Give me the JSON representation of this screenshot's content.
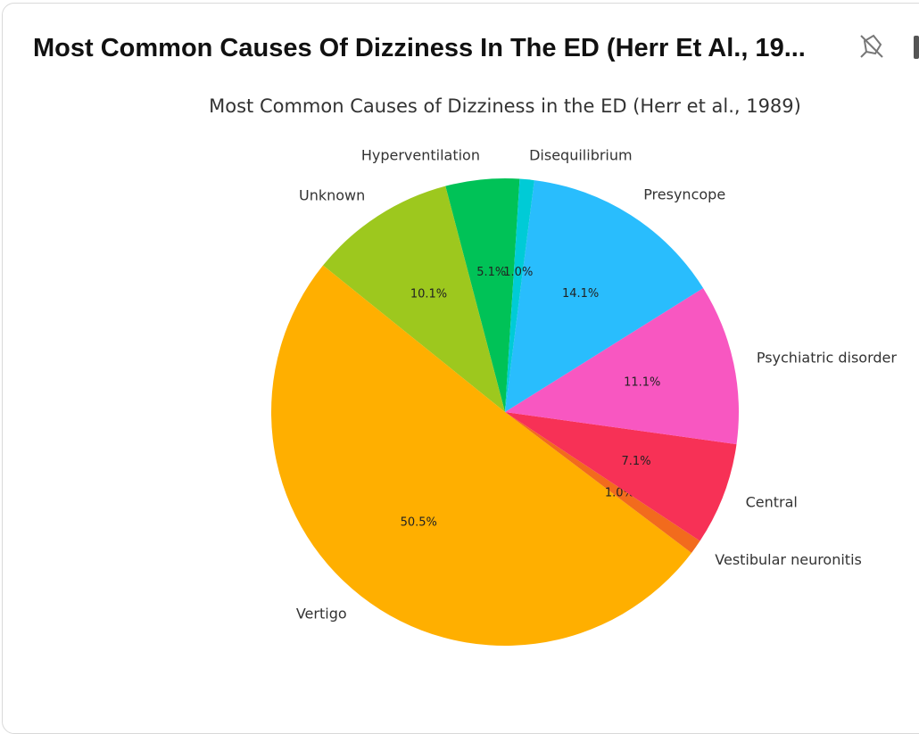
{
  "card_title": "Most Common Causes Of Dizziness In The ED (Herr Et Al., 19...",
  "chart_data": {
    "type": "pie",
    "title": "Most Common Causes of Dizziness in the ED (Herr et al., 1989)",
    "categories": [
      "Hyperventilation",
      "Unknown",
      "Vertigo",
      "Vestibular neuronitis",
      "Central",
      "Psychiatric disorder",
      "Presyncope",
      "Disequilibrium"
    ],
    "values": [
      5.1,
      10.1,
      50.5,
      1.0,
      7.1,
      11.1,
      14.1,
      1.0
    ],
    "value_labels": [
      "5.1%",
      "10.1%",
      "50.5%",
      "1.0%",
      "7.1%",
      "11.1%",
      "14.1%",
      "1.0%"
    ],
    "colors": [
      "#00c257",
      "#9dc81e",
      "#ffaf00",
      "#f26b1d",
      "#f73156",
      "#f857c1",
      "#29bdfd",
      "#00cbd6"
    ]
  }
}
